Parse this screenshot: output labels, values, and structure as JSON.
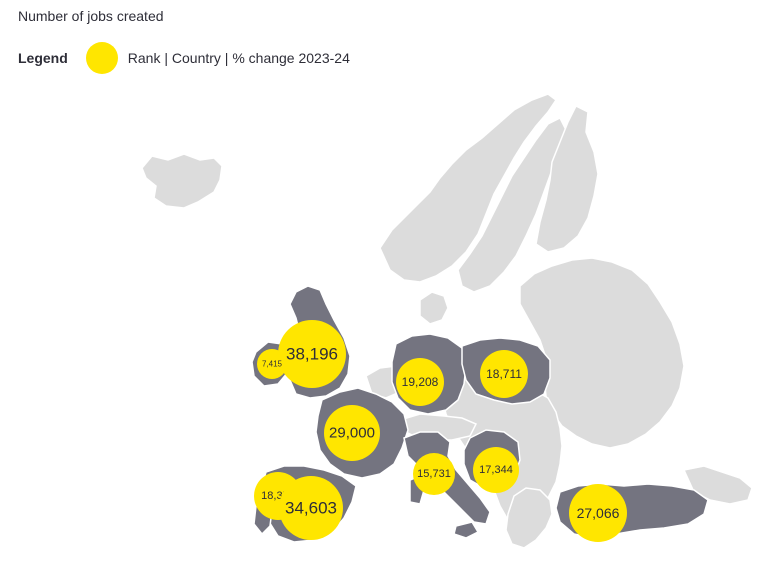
{
  "title": "Number of jobs created",
  "legend": {
    "label": "Legend",
    "description": "Rank | Country | % change 2023-24",
    "color": "#ffe600"
  },
  "colors": {
    "land": "#dcdcdc",
    "highlight": "#747480",
    "bubble": "#ffe600"
  },
  "bubbles": [
    {
      "value": 38196,
      "label": "38,196"
    },
    {
      "value": 7415,
      "label": "7,415"
    },
    {
      "value": 19208,
      "label": "19,208"
    },
    {
      "value": 18711,
      "label": "18,711"
    },
    {
      "value": 29000,
      "label": "29,000"
    },
    {
      "value": 15731,
      "label": "15,731"
    },
    {
      "value": 17344,
      "label": "17,344"
    },
    {
      "value": 18376,
      "label": "18,376"
    },
    {
      "value": 34603,
      "label": "34,603"
    },
    {
      "value": 27066,
      "label": "27,066"
    }
  ]
}
